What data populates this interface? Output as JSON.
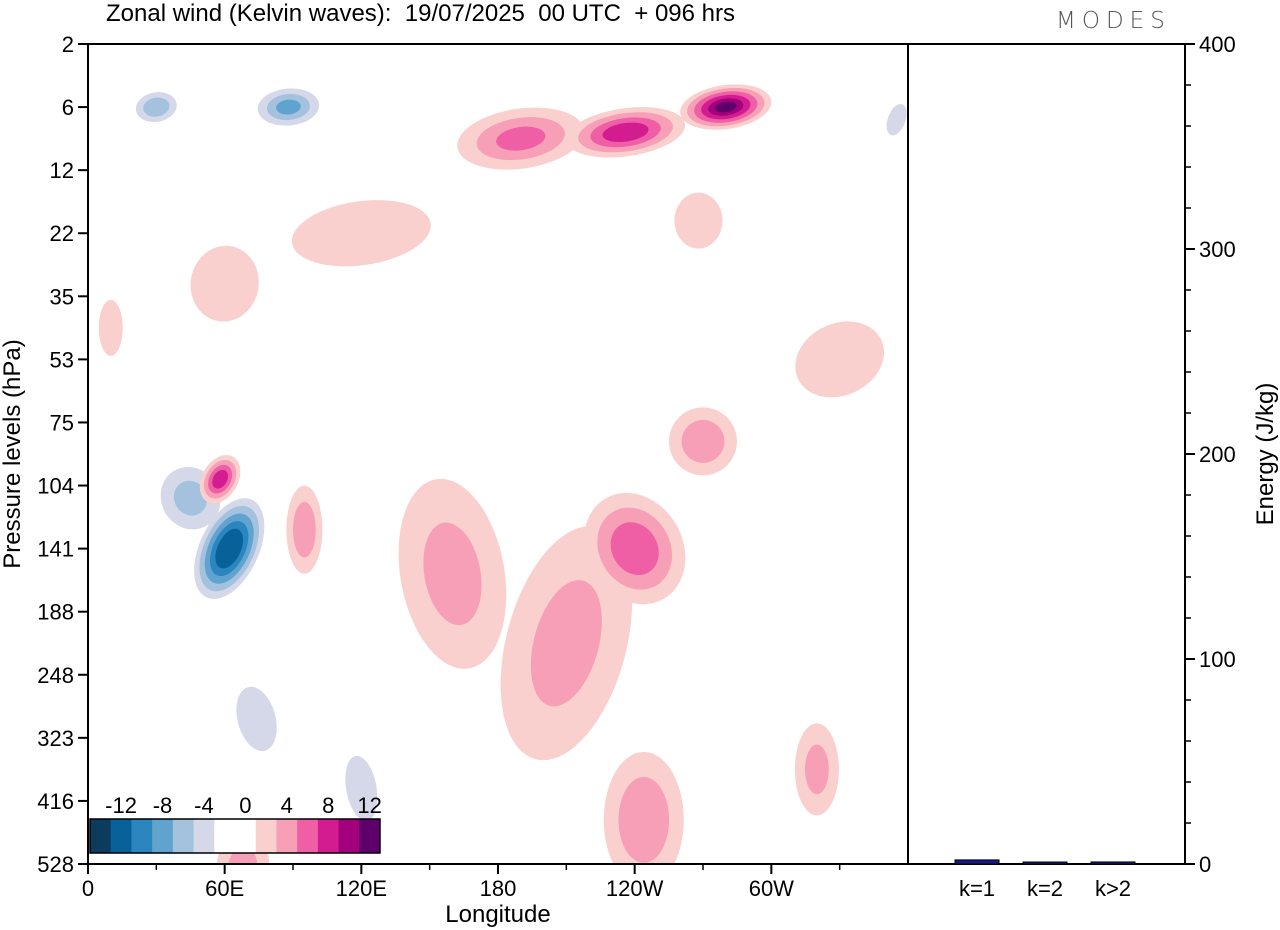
{
  "header": {
    "title": "Zonal wind (Kelvin waves):  19/07/2025  00 UTC  + 096 hrs",
    "brand": "MODES"
  },
  "chart_data": [
    {
      "type": "heatmap",
      "title": "Zonal wind (Kelvin waves):  19/07/2025  00 UTC  + 096 hrs",
      "xlabel": "Longitude",
      "ylabel": "Pressure levels (hPa)",
      "x_ticks": [
        "0",
        "60E",
        "120E",
        "180",
        "120W",
        "60W"
      ],
      "x_tick_degrees": [
        0,
        60,
        120,
        180,
        240,
        300
      ],
      "xlim": [
        0,
        360
      ],
      "y_levels": [
        "2",
        "6",
        "12",
        "22",
        "35",
        "53",
        "75",
        "104",
        "141",
        "188",
        "248",
        "323",
        "416",
        "528"
      ],
      "colorbar": {
        "labels": [
          "-12",
          "-8",
          "-4",
          "0",
          "4",
          "8",
          "12"
        ],
        "colors": [
          "#0b3c5d",
          "#08629a",
          "#2b86bf",
          "#61a3cf",
          "#a4c2de",
          "#d4d8e9",
          "#ffffff",
          "#ffffff",
          "#fad0cf",
          "#f79fb6",
          "#ee5fa5",
          "#d21c8f",
          "#a3007d",
          "#5d006b"
        ]
      },
      "features": [
        {
          "sign": "negative",
          "center_lon": 62,
          "center_level": "141",
          "peak": -14
        },
        {
          "sign": "negative",
          "center_lon": 30,
          "center_level": "6",
          "peak": -7
        },
        {
          "sign": "negative",
          "center_lon": 88,
          "center_level": "6",
          "peak": -8
        },
        {
          "sign": "negative",
          "center_lon": 45,
          "center_level": "104",
          "peak": -6
        },
        {
          "sign": "positive",
          "center_lon": 58,
          "center_level": "104",
          "peak": 9
        },
        {
          "sign": "positive",
          "center_lon": 240,
          "center_level": "141",
          "peak": 7
        },
        {
          "sign": "positive",
          "center_lon": 280,
          "center_level": "6",
          "peak": 12
        },
        {
          "sign": "positive",
          "center_lon": 235,
          "center_level": "416",
          "peak": 5
        }
      ]
    },
    {
      "type": "bar",
      "categories": [
        "k=1",
        "k=2",
        "k>2"
      ],
      "values": [
        2,
        0.5,
        1
      ],
      "ylabel": "Energy (J/kg)",
      "ylim": [
        0,
        400
      ],
      "y_ticks": [
        "0",
        "100",
        "200",
        "300",
        "400"
      ],
      "bar_color": "#1a1a8c"
    }
  ]
}
